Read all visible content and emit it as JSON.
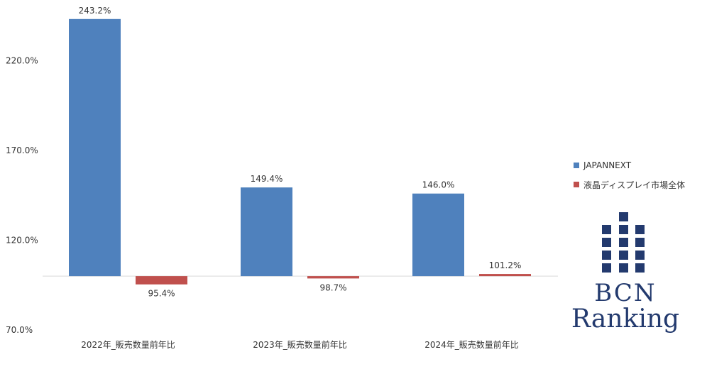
{
  "chart_data": {
    "type": "bar",
    "baseline": 100,
    "categories": [
      "2022年_販売数量前年比",
      "2023年_販売数量前年比",
      "2024年_販売数量前年比"
    ],
    "series": [
      {
        "name": "JAPANNEXT",
        "color": "#4f81bd",
        "values": [
          243.2,
          149.4,
          146.0
        ],
        "labels": [
          "243.2%",
          "149.4%",
          "146.0%"
        ]
      },
      {
        "name": "液晶ディスプレイ市場全体",
        "color": "#c0504d",
        "values": [
          95.4,
          98.7,
          101.2
        ],
        "labels": [
          "95.4%",
          "98.7%",
          "101.2%"
        ]
      }
    ],
    "yticks": [
      {
        "value": 70,
        "label": "70.0%"
      },
      {
        "value": 120,
        "label": "120.0%"
      },
      {
        "value": 170,
        "label": "170.0%"
      },
      {
        "value": 220,
        "label": "220.0%"
      }
    ],
    "ylim": [
      70,
      250
    ],
    "grid": false,
    "legend_position": "right"
  },
  "logo": {
    "line1": "BCN",
    "line2": "Ranking",
    "color": "#233a6e"
  }
}
